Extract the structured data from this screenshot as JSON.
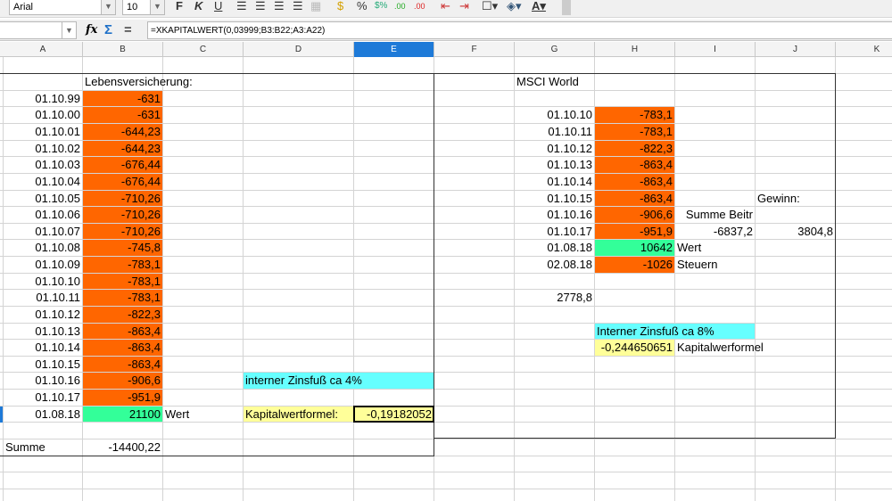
{
  "toolbar": {
    "font_name": "Arial",
    "font_size": "10",
    "bold_icon": "F",
    "italic_icon": "K",
    "underline_icon": "U"
  },
  "formula_bar": {
    "name_box": "",
    "fx_icon": "fx",
    "sum_icon": "Σ",
    "equals_icon": "=",
    "formula": "=XKAPITALWERT(0,03999;B3:B22;A3:A22)"
  },
  "columns": [
    "A",
    "B",
    "C",
    "D",
    "E",
    "F",
    "G",
    "H",
    "I",
    "J",
    "K"
  ],
  "selected_column": "E",
  "colors": {
    "orange": "#ff6600",
    "green": "#33ff99",
    "cyan": "#66ffff",
    "yellow": "#ffff99",
    "selection": "#1e7ad8"
  },
  "cells": [
    {
      "col": "B",
      "row": 2,
      "text": "Lebensversicherung:"
    },
    {
      "col": "A",
      "row": 3,
      "text": "01.10.99",
      "align": "r"
    },
    {
      "col": "B",
      "row": 3,
      "text": "-631",
      "align": "r",
      "bg": "orange"
    },
    {
      "col": "A",
      "row": 4,
      "text": "01.10.00",
      "align": "r"
    },
    {
      "col": "B",
      "row": 4,
      "text": "-631",
      "align": "r",
      "bg": "orange"
    },
    {
      "col": "A",
      "row": 5,
      "text": "01.10.01",
      "align": "r"
    },
    {
      "col": "B",
      "row": 5,
      "text": "-644,23",
      "align": "r",
      "bg": "orange"
    },
    {
      "col": "A",
      "row": 6,
      "text": "01.10.02",
      "align": "r"
    },
    {
      "col": "B",
      "row": 6,
      "text": "-644,23",
      "align": "r",
      "bg": "orange"
    },
    {
      "col": "A",
      "row": 7,
      "text": "01.10.03",
      "align": "r"
    },
    {
      "col": "B",
      "row": 7,
      "text": "-676,44",
      "align": "r",
      "bg": "orange"
    },
    {
      "col": "A",
      "row": 8,
      "text": "01.10.04",
      "align": "r"
    },
    {
      "col": "B",
      "row": 8,
      "text": "-676,44",
      "align": "r",
      "bg": "orange"
    },
    {
      "col": "A",
      "row": 9,
      "text": "01.10.05",
      "align": "r"
    },
    {
      "col": "B",
      "row": 9,
      "text": "-710,26",
      "align": "r",
      "bg": "orange"
    },
    {
      "col": "A",
      "row": 10,
      "text": "01.10.06",
      "align": "r"
    },
    {
      "col": "B",
      "row": 10,
      "text": "-710,26",
      "align": "r",
      "bg": "orange"
    },
    {
      "col": "A",
      "row": 11,
      "text": "01.10.07",
      "align": "r"
    },
    {
      "col": "B",
      "row": 11,
      "text": "-710,26",
      "align": "r",
      "bg": "orange"
    },
    {
      "col": "A",
      "row": 12,
      "text": "01.10.08",
      "align": "r"
    },
    {
      "col": "B",
      "row": 12,
      "text": "-745,8",
      "align": "r",
      "bg": "orange"
    },
    {
      "col": "A",
      "row": 13,
      "text": "01.10.09",
      "align": "r"
    },
    {
      "col": "B",
      "row": 13,
      "text": "-783,1",
      "align": "r",
      "bg": "orange"
    },
    {
      "col": "A",
      "row": 14,
      "text": "01.10.10",
      "align": "r"
    },
    {
      "col": "B",
      "row": 14,
      "text": "-783,1",
      "align": "r",
      "bg": "orange"
    },
    {
      "col": "A",
      "row": 15,
      "text": "01.10.11",
      "align": "r"
    },
    {
      "col": "B",
      "row": 15,
      "text": "-783,1",
      "align": "r",
      "bg": "orange"
    },
    {
      "col": "A",
      "row": 16,
      "text": "01.10.12",
      "align": "r"
    },
    {
      "col": "B",
      "row": 16,
      "text": "-822,3",
      "align": "r",
      "bg": "orange"
    },
    {
      "col": "A",
      "row": 17,
      "text": "01.10.13",
      "align": "r"
    },
    {
      "col": "B",
      "row": 17,
      "text": "-863,4",
      "align": "r",
      "bg": "orange"
    },
    {
      "col": "A",
      "row": 18,
      "text": "01.10.14",
      "align": "r"
    },
    {
      "col": "B",
      "row": 18,
      "text": "-863,4",
      "align": "r",
      "bg": "orange"
    },
    {
      "col": "A",
      "row": 19,
      "text": "01.10.15",
      "align": "r"
    },
    {
      "col": "B",
      "row": 19,
      "text": "-863,4",
      "align": "r",
      "bg": "orange"
    },
    {
      "col": "A",
      "row": 20,
      "text": "01.10.16",
      "align": "r"
    },
    {
      "col": "B",
      "row": 20,
      "text": "-906,6",
      "align": "r",
      "bg": "orange"
    },
    {
      "col": "A",
      "row": 21,
      "text": "01.10.17",
      "align": "r"
    },
    {
      "col": "B",
      "row": 21,
      "text": "-951,9",
      "align": "r",
      "bg": "orange"
    },
    {
      "col": "A",
      "row": 22,
      "text": "01.08.18",
      "align": "r"
    },
    {
      "col": "B",
      "row": 22,
      "text": "21100",
      "align": "r",
      "bg": "green"
    },
    {
      "col": "C",
      "row": 22,
      "text": "Wert"
    },
    {
      "col": "D",
      "row": 20,
      "span": 2,
      "text": "interner Zinsfuß ca 4%",
      "bg": "cyan"
    },
    {
      "col": "D",
      "row": 22,
      "text": "Kapitalwertformel:",
      "bg": "yellow"
    },
    {
      "col": "E",
      "row": 22,
      "text": "-0,19182052",
      "align": "r",
      "bg": "yellow"
    },
    {
      "col": "A",
      "row": 24,
      "text": "Summe"
    },
    {
      "col": "B",
      "row": 24,
      "text": "-14400,22",
      "align": "r"
    },
    {
      "col": "G",
      "row": 2,
      "text": "MSCI World"
    },
    {
      "col": "G",
      "row": 4,
      "text": "01.10.10",
      "align": "r"
    },
    {
      "col": "H",
      "row": 4,
      "text": "-783,1",
      "align": "r",
      "bg": "orange"
    },
    {
      "col": "G",
      "row": 5,
      "text": "01.10.11",
      "align": "r"
    },
    {
      "col": "H",
      "row": 5,
      "text": "-783,1",
      "align": "r",
      "bg": "orange"
    },
    {
      "col": "G",
      "row": 6,
      "text": "01.10.12",
      "align": "r"
    },
    {
      "col": "H",
      "row": 6,
      "text": "-822,3",
      "align": "r",
      "bg": "orange"
    },
    {
      "col": "G",
      "row": 7,
      "text": "01.10.13",
      "align": "r"
    },
    {
      "col": "H",
      "row": 7,
      "text": "-863,4",
      "align": "r",
      "bg": "orange"
    },
    {
      "col": "G",
      "row": 8,
      "text": "01.10.14",
      "align": "r"
    },
    {
      "col": "H",
      "row": 8,
      "text": "-863,4",
      "align": "r",
      "bg": "orange"
    },
    {
      "col": "G",
      "row": 9,
      "text": "01.10.15",
      "align": "r"
    },
    {
      "col": "H",
      "row": 9,
      "text": "-863,4",
      "align": "r",
      "bg": "orange"
    },
    {
      "col": "G",
      "row": 10,
      "text": "01.10.16",
      "align": "r"
    },
    {
      "col": "H",
      "row": 10,
      "text": "-906,6",
      "align": "r",
      "bg": "orange"
    },
    {
      "col": "G",
      "row": 11,
      "text": "01.10.17",
      "align": "r"
    },
    {
      "col": "H",
      "row": 11,
      "text": "-951,9",
      "align": "r",
      "bg": "orange"
    },
    {
      "col": "G",
      "row": 12,
      "text": "01.08.18",
      "align": "r"
    },
    {
      "col": "H",
      "row": 12,
      "text": "10642",
      "align": "r",
      "bg": "green"
    },
    {
      "col": "G",
      "row": 13,
      "text": "02.08.18",
      "align": "r"
    },
    {
      "col": "H",
      "row": 13,
      "text": "-1026",
      "align": "r",
      "bg": "orange"
    },
    {
      "col": "I",
      "row": 12,
      "text": "Wert"
    },
    {
      "col": "I",
      "row": 13,
      "text": "Steuern"
    },
    {
      "col": "J",
      "row": 9,
      "text": "Gewinn:"
    },
    {
      "col": "I",
      "row": 10,
      "text": "Summe Beitr",
      "align": "r"
    },
    {
      "col": "I",
      "row": 11,
      "text": "-6837,2",
      "align": "r"
    },
    {
      "col": "J",
      "row": 11,
      "text": "3804,8",
      "align": "r"
    },
    {
      "col": "G",
      "row": 15,
      "text": "2778,8",
      "align": "r"
    },
    {
      "col": "H",
      "row": 17,
      "span": 2,
      "text": "Interner Zinsfuß ca 8%",
      "bg": "cyan"
    },
    {
      "col": "H",
      "row": 18,
      "text": "-0,244650651",
      "align": "r",
      "bg": "yellow"
    },
    {
      "col": "I",
      "row": 18,
      "text": "Kapitalwerformel"
    }
  ]
}
